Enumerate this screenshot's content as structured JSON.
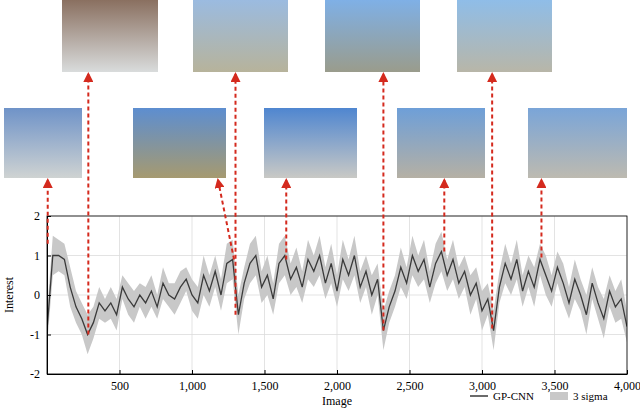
{
  "chart_data": {
    "type": "line",
    "xlabel": "Image",
    "ylabel": "Interest",
    "x": [
      0,
      40,
      80,
      120,
      160,
      200,
      240,
      280,
      320,
      360,
      400,
      440,
      480,
      520,
      560,
      600,
      640,
      680,
      720,
      760,
      800,
      840,
      880,
      920,
      960,
      1000,
      1040,
      1080,
      1120,
      1160,
      1200,
      1240,
      1280,
      1320,
      1360,
      1400,
      1440,
      1480,
      1520,
      1560,
      1600,
      1640,
      1680,
      1720,
      1760,
      1800,
      1840,
      1880,
      1920,
      1960,
      2000,
      2040,
      2080,
      2120,
      2160,
      2200,
      2240,
      2280,
      2320,
      2360,
      2400,
      2440,
      2480,
      2520,
      2560,
      2600,
      2640,
      2680,
      2720,
      2760,
      2800,
      2840,
      2880,
      2920,
      2960,
      3000,
      3040,
      3080,
      3120,
      3160,
      3200,
      3240,
      3280,
      3320,
      3360,
      3400,
      3440,
      3480,
      3520,
      3560,
      3600,
      3640,
      3680,
      3720,
      3760,
      3800,
      3840,
      3880,
      3920,
      3960,
      4000
    ],
    "series": [
      {
        "name": "GP-CNN",
        "color": "#3a3a3a",
        "type": "line",
        "values": [
          -0.9,
          1.0,
          1.0,
          0.9,
          0.2,
          -0.3,
          -0.6,
          -1.0,
          -0.7,
          -0.2,
          -0.4,
          -0.2,
          -0.5,
          0.2,
          -0.1,
          -0.3,
          0.0,
          -0.2,
          0.1,
          -0.3,
          0.3,
          0.0,
          -0.1,
          0.2,
          0.4,
          0.0,
          -0.2,
          0.5,
          0.1,
          0.6,
          0.0,
          0.8,
          0.9,
          -0.5,
          0.3,
          0.8,
          1.0,
          0.2,
          0.5,
          -0.1,
          0.8,
          1.0,
          0.4,
          0.7,
          0.2,
          0.9,
          0.6,
          1.0,
          0.3,
          0.8,
          0.1,
          0.9,
          0.5,
          1.0,
          0.2,
          0.6,
          0.0,
          0.4,
          -0.9,
          -0.3,
          0.1,
          0.7,
          0.3,
          1.0,
          0.6,
          0.9,
          0.2,
          0.8,
          1.1,
          0.5,
          0.9,
          0.3,
          0.6,
          0.0,
          0.3,
          -0.4,
          -0.1,
          -0.9,
          0.2,
          0.8,
          0.4,
          0.9,
          0.1,
          0.6,
          0.2,
          0.9,
          0.5,
          0.1,
          0.7,
          0.3,
          -0.2,
          0.4,
          0.0,
          -0.5,
          0.3,
          -0.2,
          -0.6,
          0.1,
          -0.3,
          -0.1,
          -0.8
        ]
      },
      {
        "name": "3 sigma",
        "color": "#c8c8c8",
        "type": "band",
        "error": [
          0.4,
          0.5,
          0.4,
          0.4,
          0.5,
          0.4,
          0.4,
          0.5,
          0.4,
          0.4,
          0.3,
          0.4,
          0.4,
          0.3,
          0.4,
          0.4,
          0.3,
          0.4,
          0.4,
          0.3,
          0.4,
          0.3,
          0.4,
          0.4,
          0.3,
          0.4,
          0.4,
          0.5,
          0.4,
          0.4,
          0.4,
          0.5,
          0.5,
          0.5,
          0.4,
          0.5,
          0.5,
          0.4,
          0.5,
          0.4,
          0.5,
          0.5,
          0.4,
          0.5,
          0.4,
          0.5,
          0.4,
          0.5,
          0.4,
          0.5,
          0.4,
          0.5,
          0.4,
          0.5,
          0.4,
          0.4,
          0.5,
          0.4,
          0.5,
          0.4,
          0.4,
          0.5,
          0.4,
          0.5,
          0.4,
          0.5,
          0.4,
          0.5,
          0.5,
          0.4,
          0.5,
          0.4,
          0.4,
          0.5,
          0.4,
          0.5,
          0.4,
          0.5,
          0.4,
          0.5,
          0.4,
          0.5,
          0.4,
          0.4,
          0.5,
          0.4,
          0.5,
          0.4,
          0.4,
          0.5,
          0.4,
          0.5,
          0.4,
          0.5,
          0.4,
          0.4,
          0.5,
          0.4,
          0.4,
          0.5,
          0.4
        ]
      }
    ],
    "xlim": [
      0,
      4000
    ],
    "xticks": [
      500,
      {
        "value": 1000,
        "label": "1,000"
      },
      {
        "value": 1500,
        "label": "1,500"
      },
      {
        "value": 2000,
        "label": "2,000"
      },
      {
        "value": 2500,
        "label": "2,500"
      },
      {
        "value": 3000,
        "label": "3,000"
      },
      {
        "value": 3500,
        "label": "3,500"
      },
      {
        "value": 4000,
        "label": "4,000"
      }
    ],
    "ylim": [
      -2,
      2
    ],
    "yticks": [
      -2,
      -1,
      0,
      1,
      2
    ],
    "grid": true,
    "legend": "lower right",
    "annotations": [
      {
        "x": 5,
        "y": 1.3
      },
      {
        "x": 285,
        "y": -1.0
      },
      {
        "x": 1290,
        "y": 0.9
      },
      {
        "x": 1300,
        "y": -0.5
      },
      {
        "x": 1650,
        "y": 0.9
      },
      {
        "x": 2320,
        "y": -0.9
      },
      {
        "x": 2740,
        "y": 1.1
      },
      {
        "x": 3070,
        "y": -0.85
      },
      {
        "x": 3410,
        "y": 0.95
      }
    ]
  }
}
